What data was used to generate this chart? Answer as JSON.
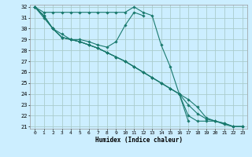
{
  "xlabel": "Humidex (Indice chaleur)",
  "bg_color": "#cceeff",
  "grid_color": "#aacccc",
  "line_color": "#1a7a6e",
  "xlim": [
    -0.5,
    23.5
  ],
  "ylim": [
    20.8,
    32.2
  ],
  "xticks": [
    0,
    1,
    2,
    3,
    4,
    5,
    6,
    7,
    8,
    9,
    10,
    11,
    12,
    13,
    14,
    15,
    16,
    17,
    18,
    19,
    20,
    21,
    22,
    23
  ],
  "yticks": [
    21,
    22,
    23,
    24,
    25,
    26,
    27,
    28,
    29,
    30,
    31,
    32
  ],
  "series": [
    [
      32.0,
      31.5,
      31.5,
      31.5,
      31.5,
      31.5,
      31.5,
      31.5,
      31.5,
      31.5,
      31.5,
      32.0,
      31.5,
      31.2,
      28.5,
      26.5,
      24.0,
      21.5,
      null,
      null,
      null,
      null,
      null,
      null
    ],
    [
      32.0,
      31.0,
      30.0,
      29.5,
      29.0,
      29.0,
      28.8,
      28.5,
      28.3,
      28.8,
      30.3,
      31.5,
      31.2,
      null,
      null,
      null,
      null,
      null,
      null,
      null,
      null,
      null,
      null,
      null
    ],
    [
      32.0,
      31.2,
      30.0,
      29.2,
      29.0,
      28.8,
      28.5,
      28.2,
      27.8,
      27.4,
      27.0,
      26.5,
      26.0,
      25.5,
      25.0,
      24.5,
      24.0,
      22.0,
      21.5,
      21.5,
      21.5,
      21.2,
      21.0,
      21.0
    ],
    [
      32.0,
      31.2,
      30.0,
      29.2,
      29.0,
      28.8,
      28.5,
      28.2,
      27.8,
      27.4,
      27.0,
      26.5,
      26.0,
      25.5,
      25.0,
      24.5,
      24.0,
      23.0,
      22.2,
      21.7,
      21.5,
      21.3,
      21.0,
      21.0
    ],
    [
      32.0,
      31.2,
      30.0,
      29.2,
      29.0,
      28.8,
      28.5,
      28.2,
      27.8,
      27.4,
      27.0,
      26.5,
      26.0,
      25.5,
      25.0,
      24.5,
      24.0,
      23.5,
      22.8,
      21.8,
      21.5,
      21.3,
      21.0,
      21.0
    ]
  ]
}
